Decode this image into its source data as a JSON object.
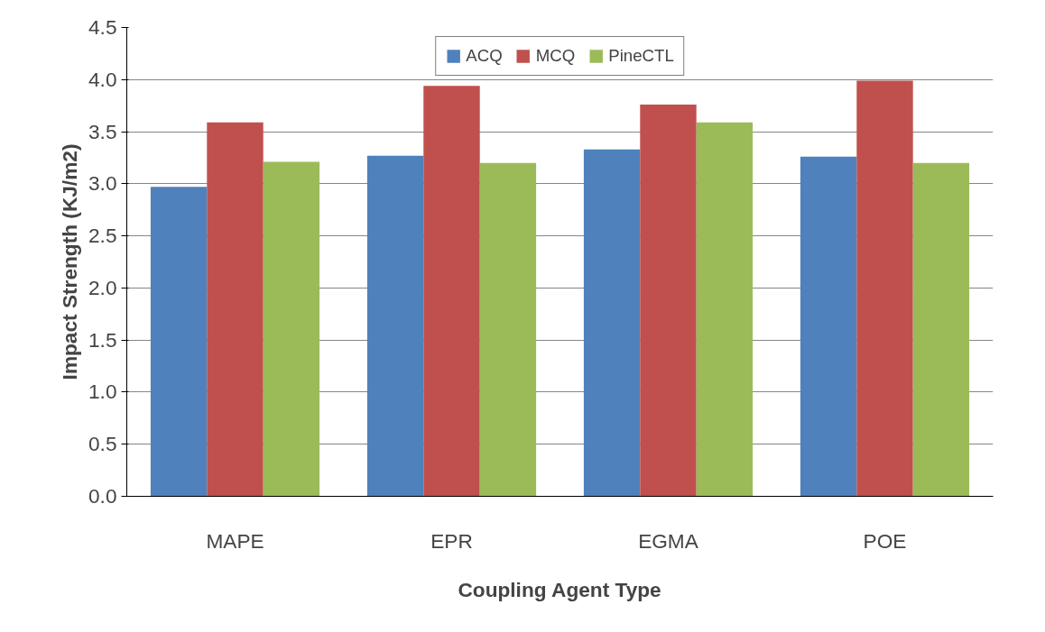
{
  "chart_data": {
    "type": "bar",
    "xlabel": "Coupling Agent Type",
    "ylabel": "Impact Strength (KJ/m2)",
    "categories": [
      "MAPE",
      "EPR",
      "EGMA",
      "POE"
    ],
    "series": [
      {
        "name": "ACQ",
        "color": "#4f81bd",
        "values": [
          2.97,
          3.27,
          3.33,
          3.26
        ]
      },
      {
        "name": "MCQ",
        "color": "#c0504d",
        "values": [
          3.59,
          3.94,
          3.76,
          3.99
        ]
      },
      {
        "name": "PineCTL",
        "color": "#9bbb59",
        "values": [
          3.21,
          3.2,
          3.59,
          3.2
        ]
      }
    ],
    "ylim": [
      0,
      4.5
    ],
    "yticks": [
      {
        "value": 0,
        "label": "0.0"
      },
      {
        "value": 0.5,
        "label": "0.5"
      },
      {
        "value": 1,
        "label": "1.0"
      },
      {
        "value": 1.5,
        "label": "1.5"
      },
      {
        "value": 2,
        "label": "2.0"
      },
      {
        "value": 2.5,
        "label": "2.5"
      },
      {
        "value": 3,
        "label": "3.0"
      },
      {
        "value": 3.5,
        "label": "3.5"
      },
      {
        "value": 4,
        "label": "4.0"
      },
      {
        "value": 4.5,
        "label": "4.5"
      }
    ],
    "grid": "y",
    "legend": "top"
  }
}
